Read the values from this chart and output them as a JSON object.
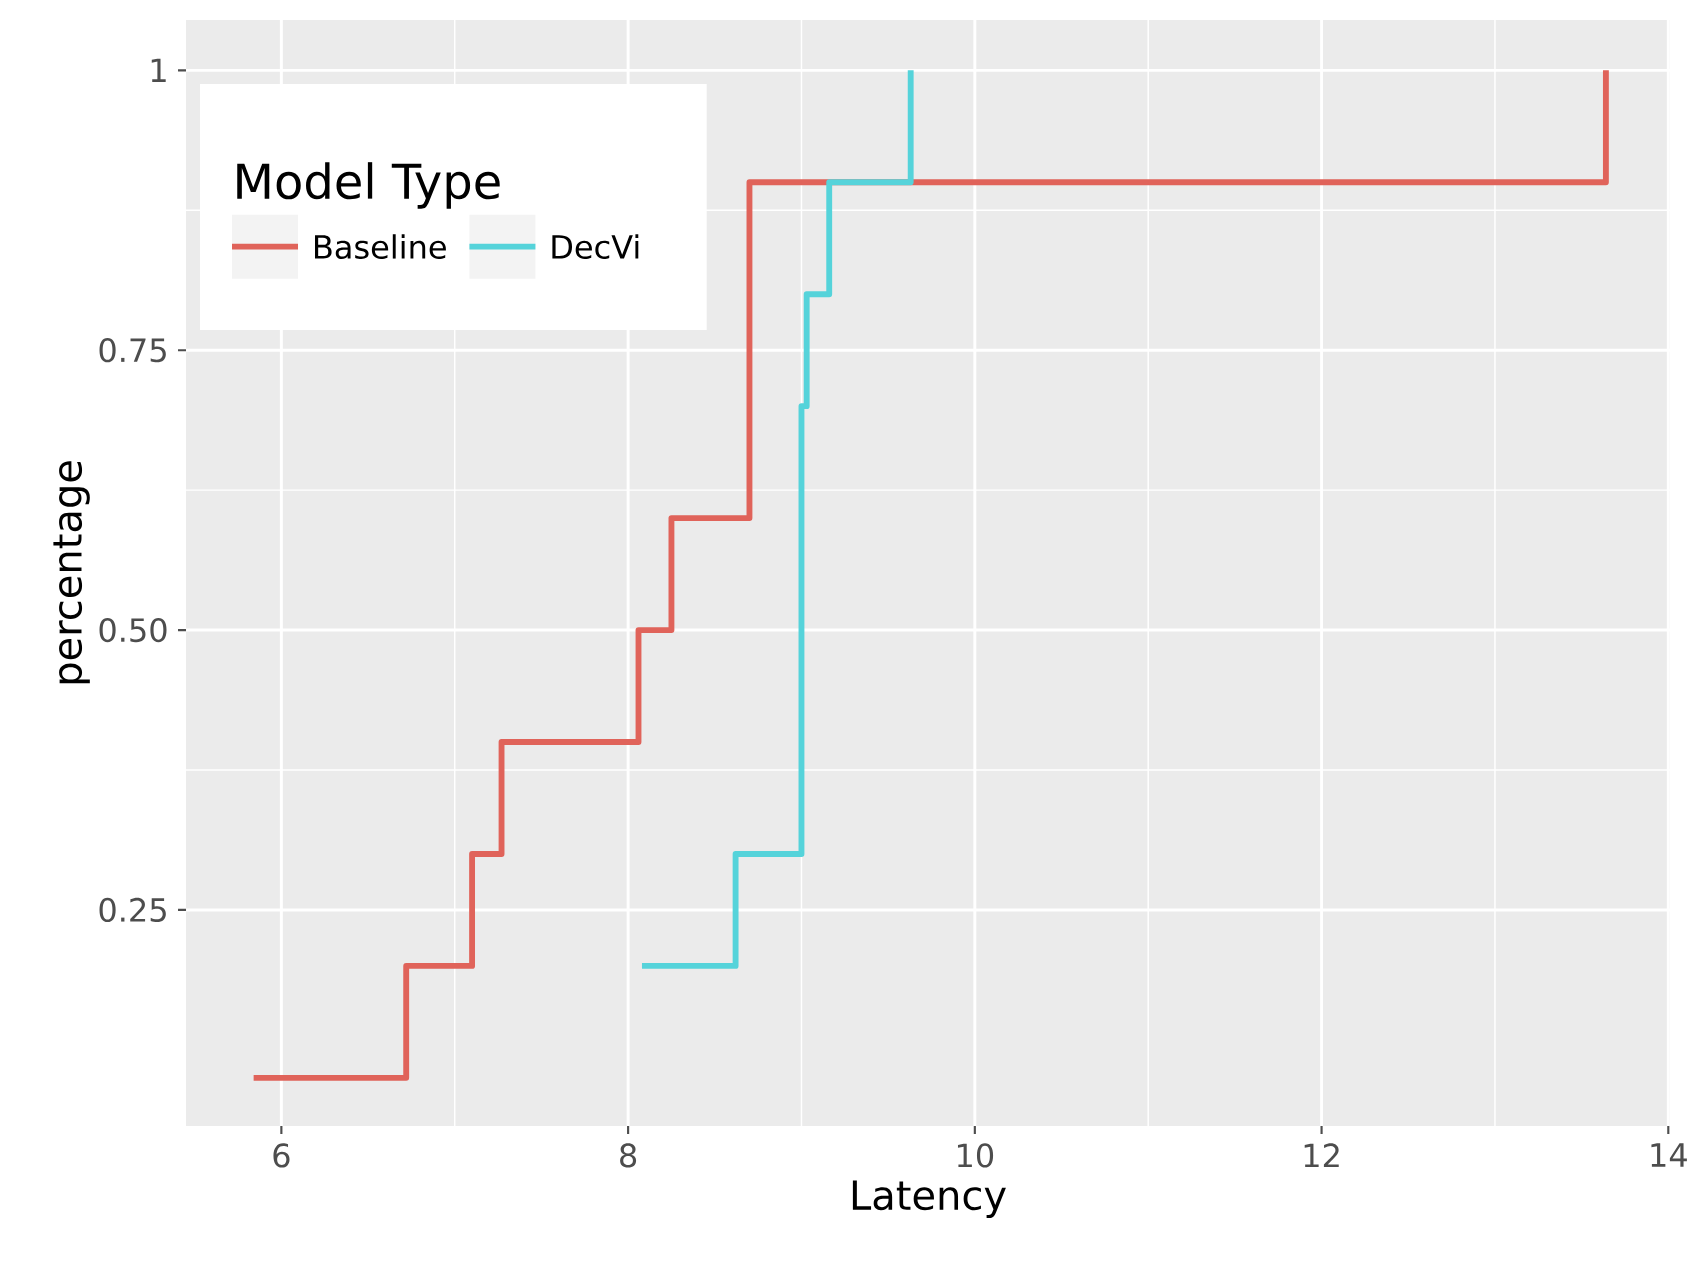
{
  "chart_data": {
    "type": "step",
    "xlabel": "Latency",
    "ylabel": "percentage",
    "legend_title": "Model Type",
    "legend": "top left",
    "grid": true,
    "xlim": [
      5.45,
      14.01
    ],
    "ylim": [
      0.057,
      1.045
    ],
    "xticks": [
      6,
      8,
      10,
      12,
      14
    ],
    "yticks": [
      {
        "value": 0.25,
        "label": "0.25"
      },
      {
        "value": 0.5,
        "label": "0.50"
      },
      {
        "value": 0.75,
        "label": "0.75"
      },
      1
    ],
    "series": [
      {
        "name": "Baseline",
        "color": "#e0635a",
        "x": [
          5.84,
          6.72,
          7.1,
          7.27,
          8.06,
          8.25,
          8.7,
          13.64
        ],
        "values": [
          0.1,
          0.2,
          0.3,
          0.4,
          0.5,
          0.6,
          0.9,
          1.0
        ]
      },
      {
        "name": "DecVi",
        "color": "#55d3da",
        "x": [
          8.08,
          8.62,
          9.0,
          9.03,
          9.16,
          9.63
        ],
        "values": [
          0.2,
          0.3,
          0.7,
          0.8,
          0.9,
          1.0
        ]
      }
    ]
  }
}
